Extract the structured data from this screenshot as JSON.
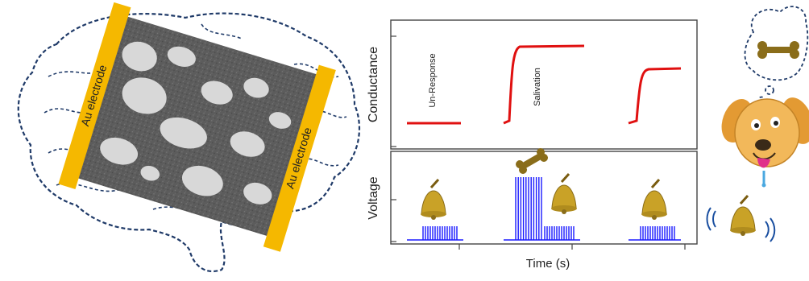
{
  "brain": {
    "electrode_left_label": "Au electrode",
    "electrode_right_label": "Au electrode"
  },
  "plot": {
    "conductance_label": "Conductance",
    "voltage_label": "Voltage",
    "time_label": "Time (s)",
    "annotation_1": "Un-Response",
    "annotation_2": "Salivation"
  },
  "colors": {
    "brain_outline": "#1f3a68",
    "electrode": "#f5b800",
    "conductance": "#e01010",
    "voltage": "#1a1aff",
    "bell": "#c9a227",
    "bone": "#8a6d1a",
    "dog": "#f2b85a"
  },
  "icons": [
    "brain-outline-icon",
    "bell-icon",
    "bone-icon",
    "dog-face-icon",
    "thought-cloud-icon"
  ]
}
